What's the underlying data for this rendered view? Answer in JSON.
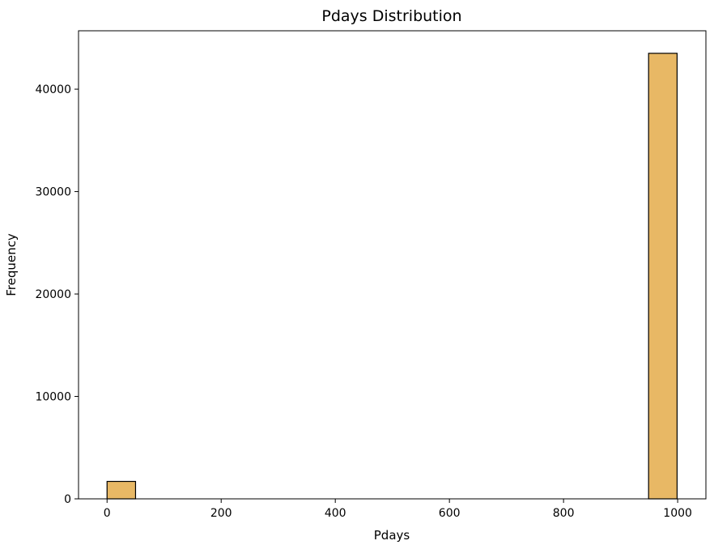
{
  "chart_data": {
    "type": "bar",
    "title": "Pdays Distribution",
    "xlabel": "Pdays",
    "ylabel": "Frequency",
    "xlim": [
      -50,
      1049.5
    ],
    "ylim": [
      0,
      45700
    ],
    "xticks": [
      0,
      200,
      400,
      600,
      800,
      1000
    ],
    "yticks": [
      0,
      10000,
      20000,
      30000,
      40000
    ],
    "bin_width": 49.95,
    "bins": [
      {
        "x0": 0,
        "x1": 49.95,
        "count": 1700
      },
      {
        "x0": 949.05,
        "x1": 999,
        "count": 43500
      }
    ],
    "bar_color": "#e8b865",
    "edge_color": "#000000",
    "grid": false,
    "legend": "none"
  }
}
